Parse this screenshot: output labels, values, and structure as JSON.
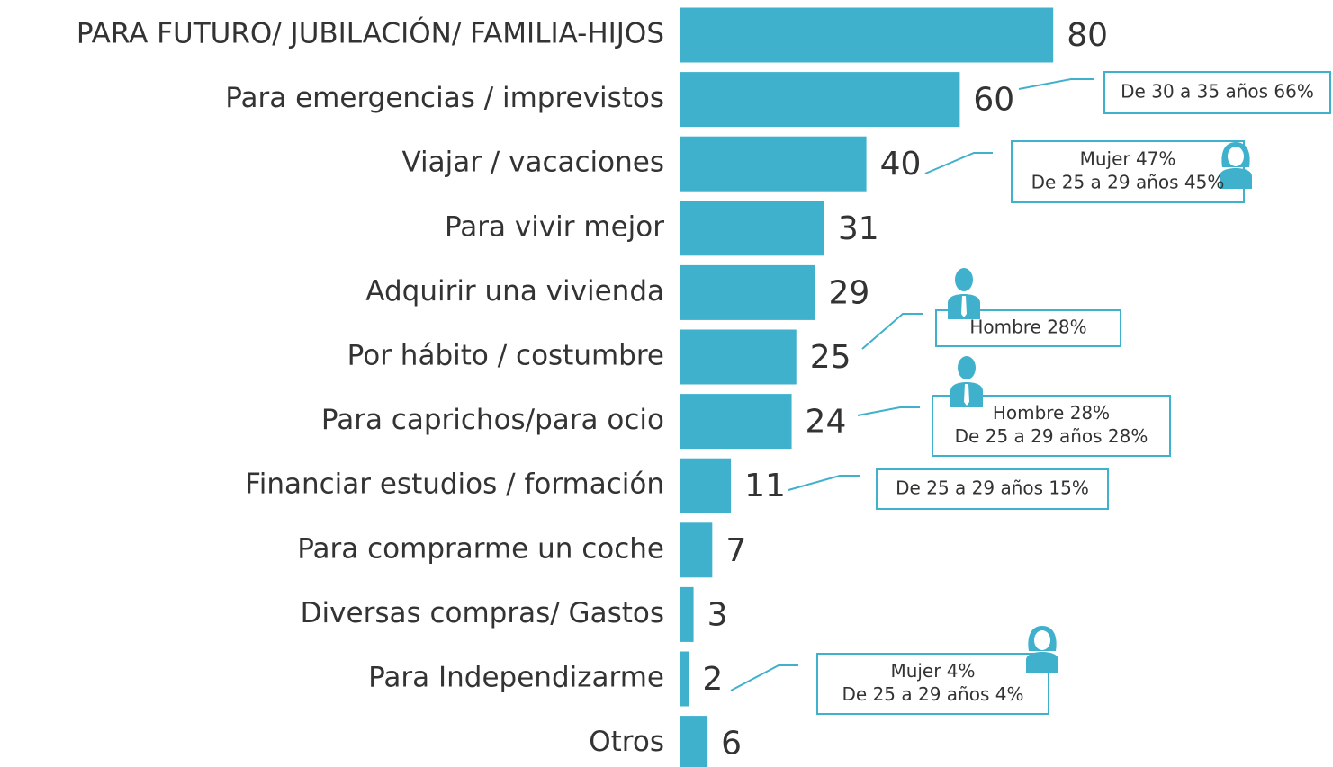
{
  "chart_data": {
    "type": "bar",
    "orientation": "horizontal",
    "color": "#40b1cd",
    "categories": [
      "PARA FUTURO/ JUBILACIÓN/ FAMILIA-HIJOS",
      "Para emergencias / imprevistos",
      "Viajar / vacaciones",
      "Para vivir mejor",
      "Adquirir una vivienda",
      "Por hábito / costumbre",
      "Para caprichos/para ocio",
      "Financiar estudios / formación",
      "Para comprarme un coche",
      "Diversas compras/ Gastos",
      "Para Independizarme",
      "Otros"
    ],
    "values": [
      80,
      60,
      40,
      31,
      29,
      25,
      24,
      11,
      7,
      3,
      2,
      6
    ],
    "annotations": [
      {
        "category": 1,
        "lines": [
          "De 30 a 35 años 66%"
        ]
      },
      {
        "category": 2,
        "lines": [
          "Mujer 47%",
          "De 25 a 29 años 45%"
        ]
      },
      {
        "category": 5,
        "lines": [
          "Hombre 28%"
        ]
      },
      {
        "category": 6,
        "lines": [
          "Hombre 28%",
          "De 25 a 29 años 28%"
        ]
      },
      {
        "category": 7,
        "lines": [
          "De 25 a 29 años 15%"
        ]
      },
      {
        "category": 10,
        "lines": [
          "Mujer 4%",
          "De 25 a 29 años 4%"
        ]
      }
    ]
  }
}
